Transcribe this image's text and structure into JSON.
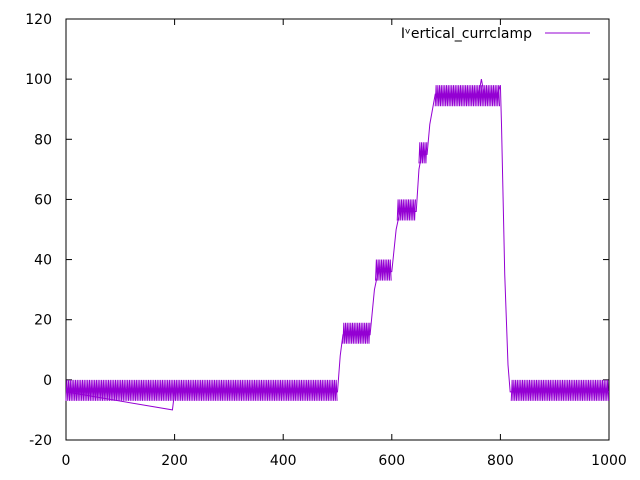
{
  "chart_data": {
    "type": "line",
    "title": "",
    "xlabel": "",
    "ylabel": "",
    "xlim": [
      0,
      1000
    ],
    "ylim": [
      -20,
      120
    ],
    "x_ticks": [
      0,
      200,
      400,
      600,
      800,
      1000
    ],
    "y_ticks": [
      -20,
      0,
      20,
      40,
      60,
      80,
      100,
      120
    ],
    "x_tick_labels": [
      "0",
      "200",
      "400",
      "600",
      "800",
      "1000"
    ],
    "y_tick_labels": [
      "-20",
      "0",
      "20",
      "40",
      "60",
      "80",
      "100",
      "120"
    ],
    "grid": false,
    "legend_position": "top-right",
    "series": [
      {
        "name": "Iᵛertical_currclamp",
        "color": "#9400d3",
        "noise_band": [
          {
            "x_start": 0,
            "x_end": 500,
            "low": -7,
            "high": 0
          },
          {
            "x_start": 510,
            "x_end": 560,
            "low": 12,
            "high": 19
          },
          {
            "x_start": 570,
            "x_end": 600,
            "low": 33,
            "high": 40
          },
          {
            "x_start": 610,
            "x_end": 645,
            "low": 53,
            "high": 60
          },
          {
            "x_start": 650,
            "x_end": 665,
            "low": 72,
            "high": 79
          },
          {
            "x_start": 680,
            "x_end": 800,
            "low": 91,
            "high": 98
          },
          {
            "x_start": 820,
            "x_end": 1000,
            "low": -7,
            "high": 0
          }
        ],
        "points": [
          [
            0,
            -4
          ],
          [
            196,
            -10
          ],
          [
            200,
            -4
          ],
          [
            500,
            -4
          ],
          [
            505,
            8
          ],
          [
            510,
            15
          ],
          [
            560,
            15
          ],
          [
            568,
            30
          ],
          [
            575,
            36
          ],
          [
            600,
            36
          ],
          [
            608,
            50
          ],
          [
            615,
            56
          ],
          [
            645,
            56
          ],
          [
            650,
            70
          ],
          [
            655,
            75
          ],
          [
            665,
            75
          ],
          [
            670,
            85
          ],
          [
            680,
            95
          ],
          [
            760,
            95
          ],
          [
            765,
            100
          ],
          [
            770,
            95
          ],
          [
            795,
            95
          ],
          [
            800,
            98
          ],
          [
            802,
            85
          ],
          [
            805,
            60
          ],
          [
            808,
            35
          ],
          [
            811,
            20
          ],
          [
            814,
            5
          ],
          [
            818,
            -4
          ],
          [
            1000,
            -4
          ]
        ]
      }
    ]
  }
}
